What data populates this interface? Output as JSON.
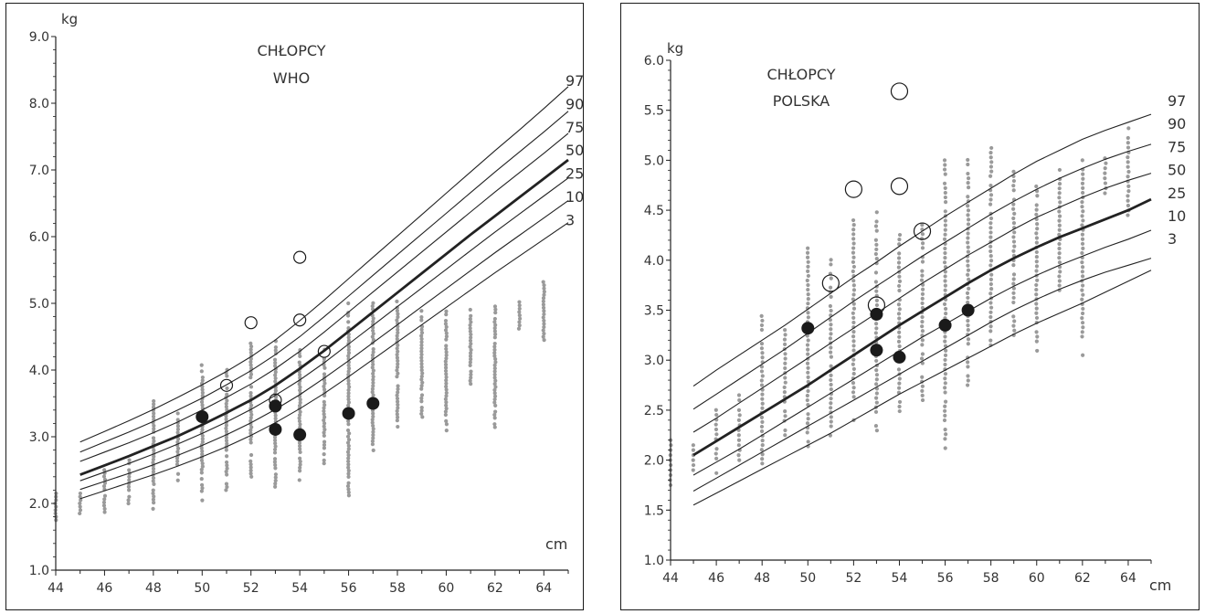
{
  "chart_data": [
    {
      "type": "line",
      "title": "CHŁOPCY",
      "subtitle": "WHO",
      "ylabel": "kg",
      "xlabel": "cm",
      "xlim": [
        44,
        65
      ],
      "ylim": [
        1.0,
        9.0
      ],
      "x_ticks": [
        "44",
        "46",
        "48",
        "50",
        "52",
        "54",
        "56",
        "58",
        "60",
        "62",
        "64"
      ],
      "y_ticks": [
        "1.0",
        "2.0",
        "3.0",
        "4.0",
        "5.0",
        "6.0",
        "7.0",
        "8.0",
        "9.0"
      ],
      "percentile_x": [
        45,
        46,
        47,
        48,
        49,
        50,
        51,
        52,
        53,
        54,
        55,
        56,
        57,
        58,
        59,
        60,
        61,
        62,
        63,
        64,
        65
      ],
      "series": [
        {
          "name": "97",
          "bold": false,
          "values": [
            2.92,
            3.08,
            3.24,
            3.41,
            3.59,
            3.78,
            3.98,
            4.2,
            4.45,
            4.74,
            5.05,
            5.37,
            5.69,
            6.01,
            6.33,
            6.65,
            6.97,
            7.29,
            7.6,
            7.92,
            8.25
          ]
        },
        {
          "name": "90",
          "bold": false,
          "values": [
            2.77,
            2.92,
            3.07,
            3.23,
            3.4,
            3.58,
            3.78,
            3.99,
            4.23,
            4.5,
            4.8,
            5.11,
            5.42,
            5.73,
            6.04,
            6.35,
            6.66,
            6.97,
            7.27,
            7.57,
            7.88
          ]
        },
        {
          "name": "75",
          "bold": false,
          "values": [
            2.63,
            2.77,
            2.91,
            3.06,
            3.22,
            3.4,
            3.59,
            3.79,
            4.02,
            4.28,
            4.57,
            4.87,
            5.17,
            5.47,
            5.77,
            6.07,
            6.37,
            6.67,
            6.96,
            7.25,
            7.55
          ]
        },
        {
          "name": "50",
          "bold": true,
          "values": [
            2.43,
            2.57,
            2.71,
            2.86,
            3.01,
            3.18,
            3.36,
            3.55,
            3.77,
            4.02,
            4.29,
            4.58,
            4.87,
            5.16,
            5.45,
            5.74,
            6.03,
            6.31,
            6.59,
            6.87,
            7.15
          ]
        },
        {
          "name": "25",
          "bold": false,
          "values": [
            2.34,
            2.47,
            2.6,
            2.74,
            2.89,
            3.05,
            3.22,
            3.41,
            3.62,
            3.85,
            4.11,
            4.39,
            4.67,
            4.95,
            5.23,
            5.51,
            5.79,
            6.07,
            6.34,
            6.61,
            6.88
          ]
        },
        {
          "name": "10",
          "bold": false,
          "values": [
            2.21,
            2.33,
            2.45,
            2.58,
            2.72,
            2.87,
            3.03,
            3.21,
            3.41,
            3.63,
            3.88,
            4.14,
            4.41,
            4.68,
            4.95,
            5.22,
            5.49,
            5.76,
            6.02,
            6.28,
            6.54
          ]
        },
        {
          "name": "3",
          "bold": false,
          "values": [
            2.07,
            2.19,
            2.31,
            2.43,
            2.56,
            2.7,
            2.85,
            3.02,
            3.21,
            3.42,
            3.65,
            3.9,
            4.16,
            4.42,
            4.68,
            4.94,
            5.2,
            5.46,
            5.71,
            5.96,
            6.21
          ]
        }
      ],
      "filled_points": [
        [
          50,
          3.3
        ],
        [
          53,
          3.46
        ],
        [
          53,
          3.11
        ],
        [
          54,
          3.03
        ],
        [
          56,
          3.35
        ],
        [
          57,
          3.5
        ]
      ],
      "open_points": [
        [
          51,
          3.77
        ],
        [
          52,
          4.71
        ],
        [
          53,
          3.55
        ],
        [
          54,
          5.69
        ],
        [
          54,
          4.75
        ],
        [
          55,
          4.28
        ]
      ],
      "gray_ranges": [
        [
          44,
          1.7,
          2.2
        ],
        [
          45,
          1.85,
          2.2
        ],
        [
          46,
          1.87,
          2.55
        ],
        [
          47,
          2.0,
          2.7
        ],
        [
          48,
          1.92,
          3.58
        ],
        [
          49,
          2.25,
          3.35
        ],
        [
          50,
          2.0,
          4.12
        ],
        [
          51,
          2.2,
          4.05
        ],
        [
          52,
          2.4,
          4.4
        ],
        [
          53,
          2.25,
          4.48
        ],
        [
          54,
          2.35,
          4.3
        ],
        [
          55,
          2.6,
          4.4
        ],
        [
          56,
          2.12,
          5.0
        ],
        [
          57,
          2.75,
          5.05
        ],
        [
          58,
          3.15,
          5.17
        ],
        [
          59,
          3.25,
          4.98
        ],
        [
          60,
          3.0,
          4.88
        ],
        [
          61,
          3.7,
          4.95
        ],
        [
          62,
          3.05,
          5.0
        ],
        [
          63,
          4.62,
          5.07
        ],
        [
          64,
          4.45,
          5.32
        ]
      ]
    },
    {
      "type": "line",
      "title": "CHŁOPCY",
      "subtitle": "POLSKA",
      "ylabel": "kg",
      "xlabel": "cm",
      "xlim": [
        44,
        65
      ],
      "ylim": [
        1.0,
        6.0
      ],
      "x_ticks": [
        "44",
        "46",
        "48",
        "50",
        "52",
        "54",
        "56",
        "58",
        "60",
        "62",
        "64"
      ],
      "y_ticks": [
        "1.0",
        "1.5",
        "2.0",
        "2.5",
        "3.0",
        "3.5",
        "4.0",
        "4.5",
        "5.0",
        "5.5",
        "6.0"
      ],
      "percentile_x": [
        45,
        46,
        47,
        48,
        49,
        50,
        51,
        52,
        53,
        54,
        55,
        56,
        57,
        58,
        59,
        60,
        61,
        62,
        63,
        64,
        65
      ],
      "series": [
        {
          "name": "97",
          "bold": false,
          "values": [
            2.74,
            2.9,
            3.05,
            3.2,
            3.35,
            3.51,
            3.67,
            3.83,
            3.98,
            4.14,
            4.29,
            4.44,
            4.58,
            4.72,
            4.86,
            4.99,
            5.1,
            5.21,
            5.3,
            5.38,
            5.46
          ]
        },
        {
          "name": "90",
          "bold": false,
          "values": [
            2.51,
            2.66,
            2.81,
            2.96,
            3.11,
            3.27,
            3.43,
            3.59,
            3.74,
            3.89,
            4.04,
            4.18,
            4.32,
            4.46,
            4.59,
            4.71,
            4.82,
            4.92,
            5.01,
            5.09,
            5.16
          ]
        },
        {
          "name": "75",
          "bold": false,
          "values": [
            2.28,
            2.42,
            2.57,
            2.72,
            2.87,
            3.02,
            3.17,
            3.32,
            3.47,
            3.62,
            3.77,
            3.91,
            4.05,
            4.18,
            4.31,
            4.43,
            4.53,
            4.63,
            4.72,
            4.8,
            4.87
          ]
        },
        {
          "name": "50",
          "bold": true,
          "values": [
            2.05,
            2.19,
            2.33,
            2.47,
            2.61,
            2.75,
            2.9,
            3.05,
            3.2,
            3.35,
            3.49,
            3.63,
            3.77,
            3.9,
            4.02,
            4.13,
            4.23,
            4.32,
            4.41,
            4.5,
            4.61
          ]
        },
        {
          "name": "25",
          "bold": false,
          "values": [
            1.85,
            1.98,
            2.11,
            2.25,
            2.39,
            2.53,
            2.67,
            2.81,
            2.95,
            3.09,
            3.23,
            3.36,
            3.49,
            3.62,
            3.74,
            3.85,
            3.95,
            4.04,
            4.13,
            4.21,
            4.3
          ]
        },
        {
          "name": "10",
          "bold": false,
          "values": [
            1.69,
            1.82,
            1.95,
            2.08,
            2.21,
            2.34,
            2.47,
            2.6,
            2.73,
            2.86,
            2.99,
            3.12,
            3.25,
            3.38,
            3.5,
            3.61,
            3.71,
            3.8,
            3.88,
            3.95,
            4.02
          ]
        },
        {
          "name": "3",
          "bold": false,
          "values": [
            1.55,
            1.67,
            1.79,
            1.91,
            2.03,
            2.15,
            2.27,
            2.4,
            2.53,
            2.66,
            2.78,
            2.9,
            3.02,
            3.14,
            3.26,
            3.37,
            3.47,
            3.57,
            3.68,
            3.79,
            3.9
          ]
        }
      ],
      "filled_points": [
        [
          50,
          3.32
        ],
        [
          53,
          3.46
        ],
        [
          53,
          3.1
        ],
        [
          54,
          3.03
        ],
        [
          56,
          3.35
        ],
        [
          57,
          3.5
        ]
      ],
      "open_points": [
        [
          51,
          3.77
        ],
        [
          52,
          4.71
        ],
        [
          53,
          3.55
        ],
        [
          54,
          5.69
        ],
        [
          54,
          4.74
        ],
        [
          55,
          4.29
        ]
      ],
      "gray_ranges": [
        [
          44,
          1.7,
          2.2
        ],
        [
          45,
          1.85,
          2.2
        ],
        [
          46,
          1.87,
          2.55
        ],
        [
          47,
          2.0,
          2.7
        ],
        [
          48,
          1.92,
          3.58
        ],
        [
          49,
          2.25,
          3.35
        ],
        [
          50,
          2.0,
          4.12
        ],
        [
          51,
          2.2,
          4.05
        ],
        [
          52,
          2.4,
          4.4
        ],
        [
          53,
          2.25,
          4.48
        ],
        [
          54,
          2.35,
          4.3
        ],
        [
          55,
          2.6,
          4.4
        ],
        [
          56,
          2.12,
          5.0
        ],
        [
          57,
          2.75,
          5.05
        ],
        [
          58,
          3.15,
          5.17
        ],
        [
          59,
          3.25,
          4.98
        ],
        [
          60,
          3.0,
          4.88
        ],
        [
          61,
          3.7,
          4.95
        ],
        [
          62,
          3.05,
          5.0
        ],
        [
          63,
          4.62,
          5.07
        ],
        [
          64,
          4.45,
          5.32
        ]
      ]
    }
  ]
}
